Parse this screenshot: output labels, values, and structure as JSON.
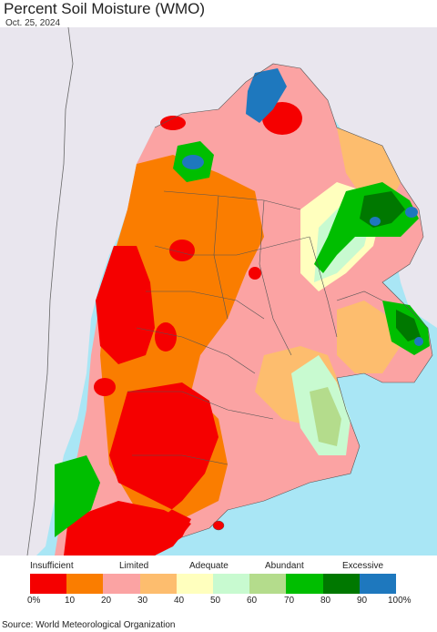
{
  "header": {
    "title": "Percent Soil Moisture (WMO)",
    "date": "Oct. 25, 2024"
  },
  "map": {
    "colors": {
      "ocean": "#a9e6f5",
      "land_outside": "#e9e6ee",
      "border": "#555555"
    }
  },
  "legend": {
    "categories": [
      "Insufficient",
      "Limited",
      "Adequate",
      "Abundant",
      "Excessive"
    ],
    "ticks": [
      "0%",
      "10",
      "20",
      "30",
      "40",
      "50",
      "60",
      "70",
      "80",
      "90",
      "100%"
    ],
    "colors": [
      "#f50000",
      "#fa7d00",
      "#fba3a3",
      "#fdbd6e",
      "#ffffbe",
      "#c8fad0",
      "#b4dc8c",
      "#00be00",
      "#007800",
      "#1e78be"
    ]
  },
  "footer": {
    "source": "Source: World Meteorological Organization"
  }
}
